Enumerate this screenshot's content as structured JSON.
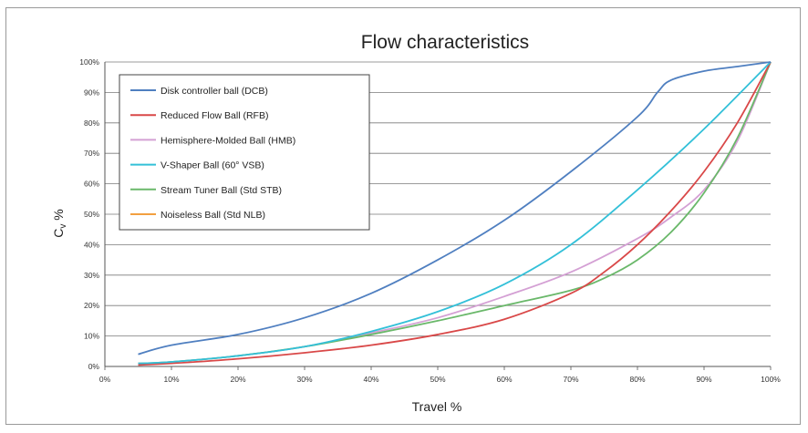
{
  "chart_data": {
    "type": "line",
    "title": "Flow characteristics",
    "xlabel": "Travel %",
    "ylabel": "C",
    "ylabel_sub": "v",
    "ylabel_unit": " %",
    "xlim": [
      0,
      100
    ],
    "ylim": [
      0,
      100
    ],
    "x_ticks": [
      "0%",
      "10%",
      "20%",
      "30%",
      "40%",
      "50%",
      "60%",
      "70%",
      "80%",
      "90%",
      "100%"
    ],
    "y_ticks": [
      "0%",
      "10%",
      "20%",
      "30%",
      "40%",
      "50%",
      "60%",
      "70%",
      "80%",
      "90%",
      "100%"
    ],
    "grid": "horizontal",
    "legend_position": "top-left",
    "series": [
      {
        "name": "Disk controller ball (DCB)",
        "color": "#4f7fc0",
        "x": [
          5,
          10,
          20,
          30,
          40,
          50,
          60,
          70,
          80,
          83,
          85,
          90,
          95,
          100
        ],
        "y": [
          4,
          7,
          10.5,
          16,
          24,
          35,
          48,
          64,
          82,
          90,
          94,
          97,
          98.5,
          100
        ]
      },
      {
        "name": "Reduced Flow Ball (RFB)",
        "color": "#d94848",
        "x": [
          5,
          10,
          20,
          30,
          40,
          50,
          60,
          70,
          75,
          80,
          85,
          90,
          95,
          100
        ],
        "y": [
          0.5,
          1,
          2.5,
          4.5,
          7,
          10.5,
          15.5,
          24,
          31,
          40,
          51,
          64,
          80,
          100
        ]
      },
      {
        "name": "Hemisphere-Molded Ball (HMB)",
        "color": "#d4a0d4",
        "x": [
          5,
          10,
          20,
          30,
          40,
          50,
          60,
          70,
          80,
          85,
          90,
          95,
          100
        ],
        "y": [
          1,
          1.5,
          3.5,
          6.5,
          11,
          16,
          23,
          31,
          42,
          49,
          58,
          74,
          100
        ]
      },
      {
        "name": "V-Shaper Ball (60° VSB)",
        "color": "#33c0d8",
        "x": [
          5,
          10,
          20,
          30,
          40,
          50,
          60,
          70,
          80,
          90,
          100
        ],
        "y": [
          1,
          1.5,
          3.5,
          6.5,
          11.5,
          18,
          27,
          40,
          58,
          78,
          100
        ]
      },
      {
        "name": "Stream Tuner Ball (Std STB)",
        "color": "#6ab86a",
        "x": [
          5,
          10,
          20,
          30,
          40,
          50,
          60,
          70,
          75,
          80,
          85,
          90,
          95,
          100
        ],
        "y": [
          1,
          1.5,
          3.5,
          6.5,
          10.5,
          15,
          20,
          25,
          29,
          35,
          44,
          57,
          75,
          100
        ]
      },
      {
        "name": "Noiseless Ball (Std NLB)",
        "color": "#f2a040",
        "x": [],
        "y": []
      }
    ]
  }
}
